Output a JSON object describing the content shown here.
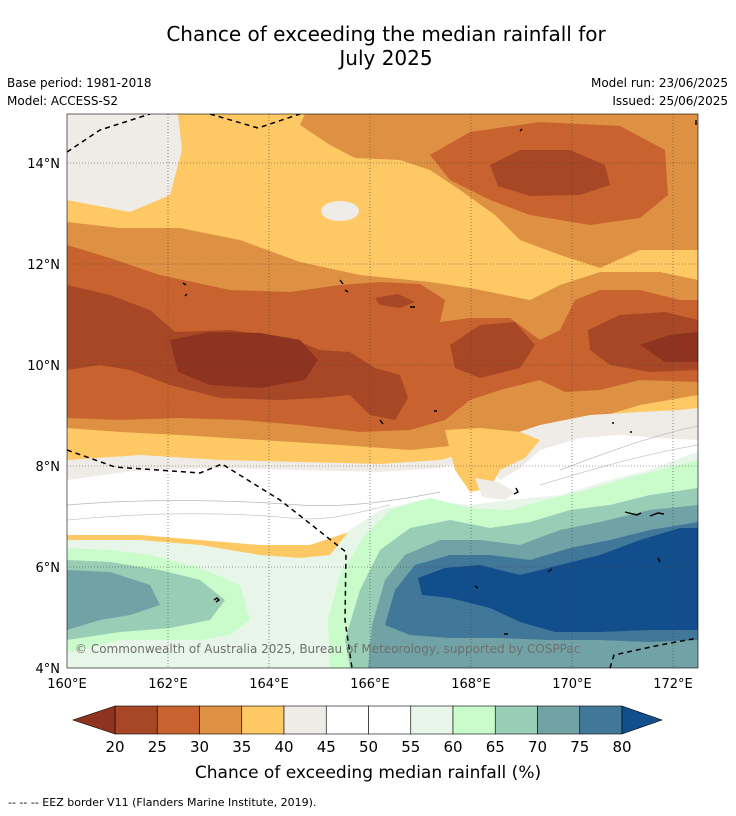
{
  "title_line1": "Chance of exceeding the median rainfall for",
  "title_line2": "July 2025",
  "meta": {
    "base_period": "Base period: 1981-2018",
    "model": "Model: ACCESS-S2",
    "model_run": "Model run: 23/06/2025",
    "issued": "Issued: 25/06/2025"
  },
  "map": {
    "lat_labels": [
      "14°N",
      "12°N",
      "10°N",
      "8°N",
      "6°N",
      "4°N"
    ],
    "lon_labels": [
      "160°E",
      "162°E",
      "164°E",
      "166°E",
      "168°E",
      "170°E",
      "172°E"
    ],
    "copyright": "© Commonwealth of Australia 2025, Bureau of Meteorology, supported by COSPPac"
  },
  "colorbar": {
    "ticks": [
      "20",
      "25",
      "30",
      "35",
      "40",
      "45",
      "50",
      "55",
      "60",
      "65",
      "70",
      "75",
      "80"
    ],
    "colors": [
      "#a84726",
      "#c8632f",
      "#df9143",
      "#fec965",
      "#efebe6",
      "#ffffff",
      "#ffffff",
      "#e8f6e9",
      "#c9fbcb",
      "#99cdb6",
      "#70a2a6",
      "#417799"
    ],
    "under_color": "#8d3320",
    "over_color": "#134e8c",
    "label": "Chance of exceeding median rainfall (%)"
  },
  "footer": "--  --  -- EEZ border V11 (Flanders Marine Institute, 2019)."
}
